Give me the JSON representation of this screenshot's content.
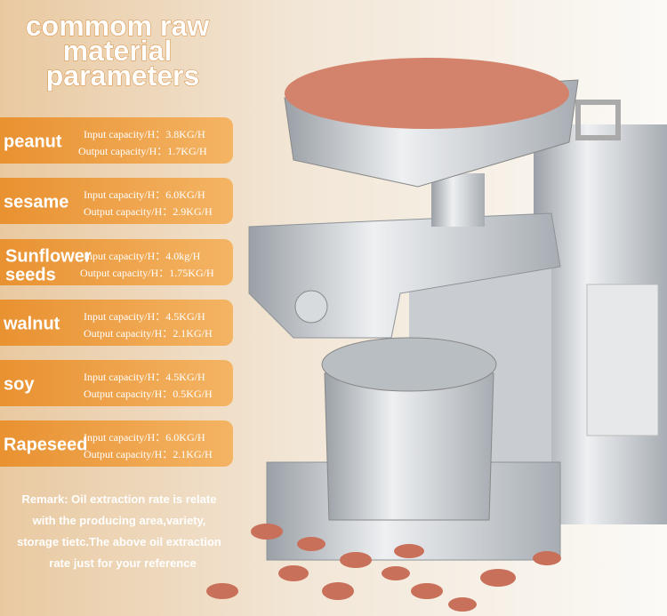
{
  "title": {
    "lines": [
      "commom raw",
      "material",
      "parameters"
    ]
  },
  "items": [
    {
      "name": [
        "peanut"
      ],
      "input": "Input capacity/H：3.8KG/H",
      "output": "Output capacity/H：1.7KG/H"
    },
    {
      "name": [
        "sesame"
      ],
      "input": "Input capacity/H：6.0KG/H",
      "output": "Output capacity/H：2.9KG/H"
    },
    {
      "name": [
        "Sunflower",
        "seeds"
      ],
      "input": "Input capacity/H：4.0kg/H",
      "output": "Output capacity/H：1.75KG/H"
    },
    {
      "name": [
        "walnut"
      ],
      "input": "Input capacity/H：4.5KG/H",
      "output": "Output capacity/H：2.1KG/H"
    },
    {
      "name": [
        "soy"
      ],
      "input": "Input capacity/H：4.5KG/H",
      "output": "Output capacity/H：0.5KG/H"
    },
    {
      "name": [
        "Rapeseed"
      ],
      "input": "Input capacity/H：6.0KG/H",
      "output": "Output capacity/H：2.1KG/H"
    }
  ],
  "remark": {
    "lines": [
      "Remark: Oil extraction rate is relate",
      "with the producing area,variety,",
      "storage tietc.The above oil extraction",
      "rate just for your reference"
    ]
  }
}
